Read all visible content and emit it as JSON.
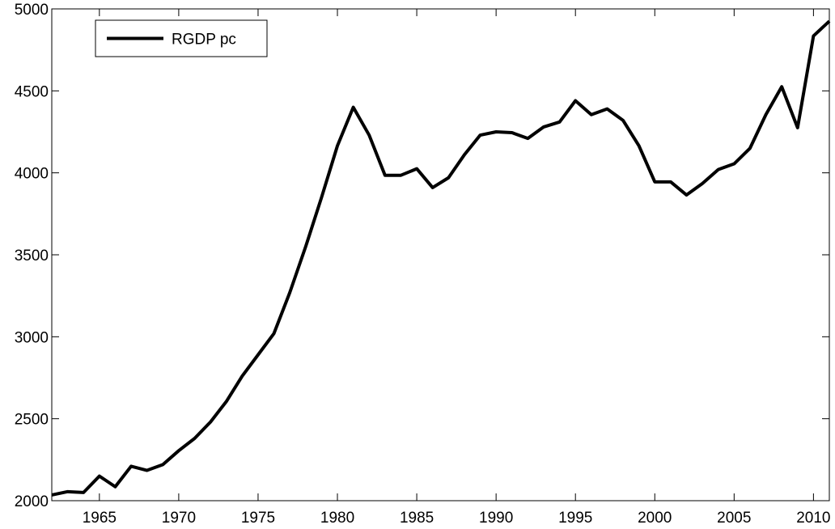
{
  "chart_data": {
    "type": "line",
    "x": [
      1962,
      1963,
      1964,
      1965,
      1966,
      1967,
      1968,
      1969,
      1970,
      1971,
      1972,
      1973,
      1974,
      1975,
      1976,
      1977,
      1978,
      1979,
      1980,
      1981,
      1982,
      1983,
      1984,
      1985,
      1986,
      1987,
      1988,
      1989,
      1990,
      1991,
      1992,
      1993,
      1994,
      1995,
      1996,
      1997,
      1998,
      1999,
      2000,
      2001,
      2002,
      2003,
      2004,
      2005,
      2006,
      2007,
      2008,
      2009,
      2010,
      2011
    ],
    "series": [
      {
        "name": "RGDP pc",
        "color": "#000000",
        "values": [
          2035,
          2055,
          2050,
          2150,
          2085,
          2210,
          2185,
          2220,
          2305,
          2380,
          2480,
          2605,
          2760,
          2890,
          3020,
          3270,
          3550,
          3850,
          4165,
          4400,
          4230,
          3985,
          3985,
          4025,
          3910,
          3970,
          4110,
          4230,
          4250,
          4245,
          4210,
          4280,
          4310,
          4440,
          4355,
          4390,
          4320,
          4165,
          3945,
          3945,
          3865,
          3935,
          4020,
          4055,
          4150,
          4355,
          4525,
          4275,
          4835,
          4925
        ]
      }
    ],
    "xlim": [
      1962,
      2011
    ],
    "xticks": [
      1965,
      1970,
      1975,
      1980,
      1985,
      1990,
      1995,
      2000,
      2005,
      2010
    ],
    "ylim": [
      2000,
      5000
    ],
    "yticks": [
      2000,
      2500,
      3000,
      3500,
      4000,
      4500,
      5000
    ],
    "grid": false,
    "legend": "upper left"
  }
}
